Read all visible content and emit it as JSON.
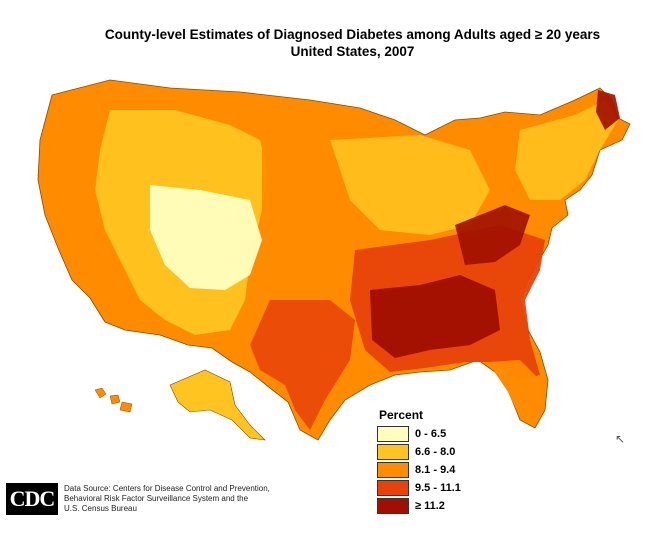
{
  "title": {
    "line1": "County-level Estimates of Diagnosed Diabetes among Adults aged ≥ 20 years",
    "line2": "United States, 2007"
  },
  "legend": {
    "title": "Percent",
    "items": [
      {
        "label": "0 - 6.5",
        "color": "#FFFFC0"
      },
      {
        "label": "6.6 - 8.0",
        "color": "#FFC41F"
      },
      {
        "label": "8.1 - 9.4",
        "color": "#FF8C00"
      },
      {
        "label": "9.5 - 11.1",
        "color": "#E8420A"
      },
      {
        "label": "≥ 11.2",
        "color": "#A00F00"
      }
    ]
  },
  "logo_text": "CDC",
  "source": {
    "lines": [
      "Data Source: Centers for Disease Control and Prevention,",
      "Behavioral Risk Factor Surveillance System and the",
      "U.S. Census Bureau"
    ]
  },
  "map_regions": {
    "west_coast": "#FF8C00",
    "mountain_west": "#FFC41F",
    "plains": "#FF8C00",
    "midwest": "#FFC41F",
    "south": "#A00F00",
    "southeast": "#E8420A",
    "northeast": "#FFC41F",
    "alaska": "#FFC41F",
    "hawaii": "#FF8C00",
    "colorado_plateau": "#FFFFC0",
    "appalachia": "#A00F00"
  }
}
